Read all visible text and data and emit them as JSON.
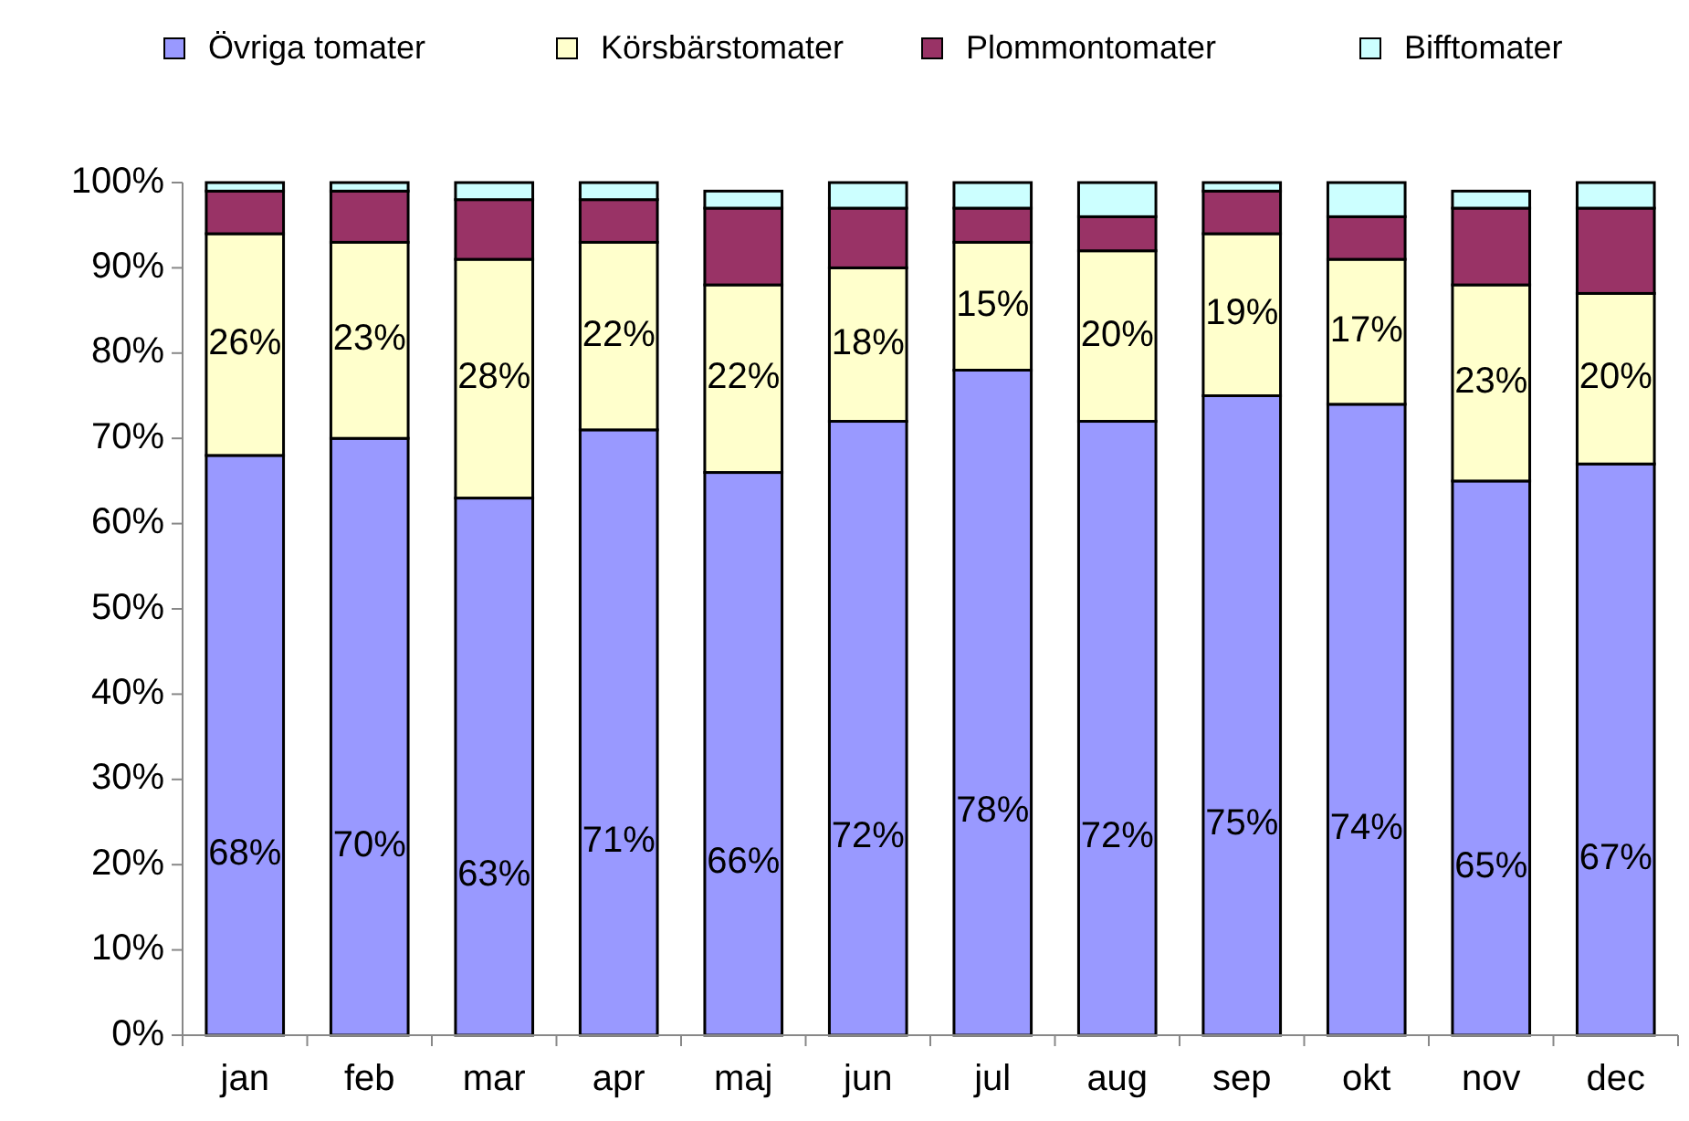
{
  "chart_data": {
    "type": "bar",
    "stacked": true,
    "categories": [
      "jan",
      "feb",
      "mar",
      "apr",
      "maj",
      "jun",
      "jul",
      "aug",
      "sep",
      "okt",
      "nov",
      "dec"
    ],
    "series": [
      {
        "name": "Övriga tomater",
        "color": "#9999ff",
        "values": [
          68,
          70,
          63,
          71,
          66,
          72,
          78,
          72,
          75,
          74,
          65,
          67
        ],
        "value_labels": [
          "68%",
          "70%",
          "63%",
          "71%",
          "66%",
          "72%",
          "78%",
          "72%",
          "75%",
          "74%",
          "65%",
          "67%"
        ]
      },
      {
        "name": "Körsbärstomater",
        "color": "#ffffcc",
        "values": [
          26,
          23,
          28,
          22,
          22,
          18,
          15,
          20,
          19,
          17,
          23,
          20
        ],
        "value_labels": [
          "26%",
          "23%",
          "28%",
          "22%",
          "22%",
          "18%",
          "15%",
          "20%",
          "19%",
          "17%",
          "23%",
          "20%"
        ]
      },
      {
        "name": "Plommontomater",
        "color": "#993366",
        "values": [
          5,
          6,
          7,
          5,
          9,
          7,
          4,
          4,
          5,
          5,
          9,
          10
        ]
      },
      {
        "name": "Bifftomater",
        "color": "#ccffff",
        "values": [
          1,
          1,
          2,
          2,
          2,
          3,
          3,
          4,
          1,
          4,
          2,
          3
        ]
      }
    ],
    "ylim": [
      0,
      100
    ],
    "yticks": [
      {
        "value": 0,
        "label": "0%"
      },
      {
        "value": 10,
        "label": "10%"
      },
      {
        "value": 20,
        "label": "20%"
      },
      {
        "value": 30,
        "label": "30%"
      },
      {
        "value": 40,
        "label": "40%"
      },
      {
        "value": 50,
        "label": "50%"
      },
      {
        "value": 60,
        "label": "60%"
      },
      {
        "value": 70,
        "label": "70%"
      },
      {
        "value": 80,
        "label": "80%"
      },
      {
        "value": 90,
        "label": "90%"
      },
      {
        "value": 100,
        "label": "100%"
      }
    ],
    "grid": false,
    "legend": "top"
  }
}
